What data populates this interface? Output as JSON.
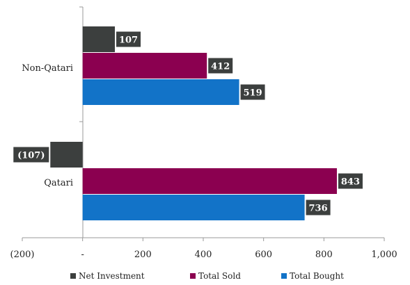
{
  "chart_data": {
    "type": "bar",
    "orientation": "horizontal",
    "categories": [
      "Non-Qatari",
      "Qatari"
    ],
    "series": [
      {
        "name": "Net Investment",
        "values": [
          107,
          -107
        ],
        "labels": [
          "107",
          "(107)"
        ],
        "color": "#3c3f3e"
      },
      {
        "name": "Total Sold",
        "values": [
          412,
          843
        ],
        "labels": [
          "412",
          "843"
        ],
        "color": "#8b0050"
      },
      {
        "name": "Total Bought",
        "values": [
          519,
          736
        ],
        "labels": [
          "519",
          "736"
        ],
        "color": "#1273c8"
      }
    ],
    "xlim": [
      -200,
      1000
    ],
    "xticks": [
      -200,
      0,
      200,
      400,
      600,
      800,
      1000
    ],
    "xtick_labels": [
      "(200)",
      "-",
      "200",
      "400",
      "600",
      "800",
      "1,000"
    ],
    "grid": false,
    "legend_position": "bottom",
    "label_box_color": "#3c3f3e"
  }
}
